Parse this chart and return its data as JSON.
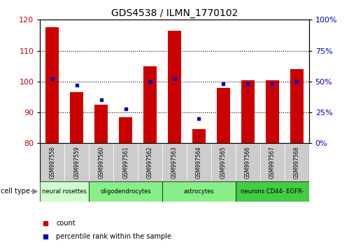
{
  "title": "GDS4538 / ILMN_1770102",
  "samples": [
    "GSM997558",
    "GSM997559",
    "GSM997560",
    "GSM997561",
    "GSM997562",
    "GSM997563",
    "GSM997564",
    "GSM997565",
    "GSM997566",
    "GSM997567",
    "GSM997568"
  ],
  "counts": [
    117.5,
    96.5,
    92.5,
    88.5,
    105.0,
    116.5,
    84.5,
    98.0,
    100.5,
    100.5,
    104.0
  ],
  "percentile_ranks": [
    52,
    47,
    35,
    28,
    50,
    52,
    20,
    48,
    48,
    48,
    50
  ],
  "ylim_left": [
    80,
    120
  ],
  "ylim_right": [
    0,
    100
  ],
  "yticks_left": [
    80,
    90,
    100,
    110,
    120
  ],
  "yticks_right": [
    0,
    25,
    50,
    75,
    100
  ],
  "bar_color": "#cc0000",
  "marker_color": "#0000cc",
  "baseline": 80,
  "ct_spans": [
    {
      "label": "neural rosettes",
      "start": 0,
      "end": 2,
      "color": "#ccffcc"
    },
    {
      "label": "oligodendrocytes",
      "start": 2,
      "end": 5,
      "color": "#88ee88"
    },
    {
      "label": "astrocytes",
      "start": 5,
      "end": 8,
      "color": "#88ee88"
    },
    {
      "label": "neurons CD44- EGFR-",
      "start": 8,
      "end": 11,
      "color": "#44cc44"
    }
  ],
  "sample_box_color": "#cccccc",
  "grid_color": "#000000",
  "legend_count_color": "#cc0000",
  "legend_pct_color": "#0000cc"
}
